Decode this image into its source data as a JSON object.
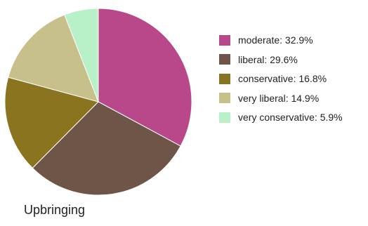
{
  "chart_data": {
    "type": "pie",
    "title": "Upbringing",
    "slices": [
      {
        "label": "moderate",
        "value": 32.9,
        "legend_text": "moderate: 32.9%",
        "color": "#B8488A"
      },
      {
        "label": "liberal",
        "value": 29.6,
        "legend_text": "liberal: 29.6%",
        "color": "#6E5548"
      },
      {
        "label": "conservative",
        "value": 16.8,
        "legend_text": "conservative: 16.8%",
        "color": "#8A7420"
      },
      {
        "label": "very liberal",
        "value": 14.9,
        "legend_text": "very liberal: 14.9%",
        "color": "#C8C08A"
      },
      {
        "label": "very conservative",
        "value": 5.9,
        "legend_text": "very conservative: 5.9%",
        "color": "#B8F0C8"
      }
    ],
    "legend_position": "right",
    "start_angle": "top",
    "direction": "clockwise"
  }
}
